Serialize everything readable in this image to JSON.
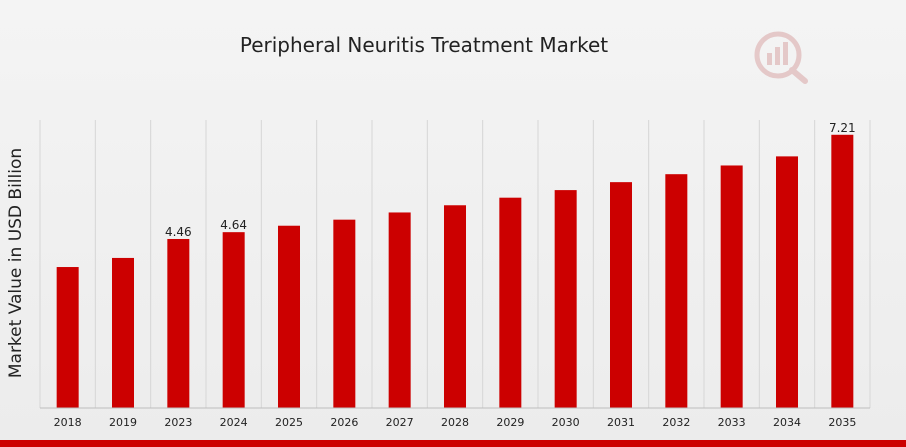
{
  "chart_data": {
    "type": "bar",
    "title": "Peripheral Neuritis Treatment Market",
    "ylabel": "Market Value in USD Billion",
    "xlabel": "",
    "categories": [
      "2018",
      "2019",
      "2023",
      "2024",
      "2025",
      "2026",
      "2027",
      "2028",
      "2029",
      "2030",
      "2031",
      "2032",
      "2033",
      "2034",
      "2035"
    ],
    "values": [
      3.72,
      3.96,
      4.46,
      4.64,
      4.81,
      4.97,
      5.16,
      5.35,
      5.55,
      5.75,
      5.96,
      6.17,
      6.4,
      6.64,
      7.21
    ],
    "data_labels": [
      "",
      "",
      "4.46",
      "4.64",
      "",
      "",
      "",
      "",
      "",
      "",
      "",
      "",
      "",
      "",
      "7.21"
    ],
    "ylim": [
      0,
      7.6
    ],
    "grid": "vertical",
    "legend": "none",
    "colors": {
      "bar": "#cc0000",
      "bottom_band": "#cc0000",
      "grid": "#d6d6d6",
      "logo": "#d9a6a6"
    }
  }
}
